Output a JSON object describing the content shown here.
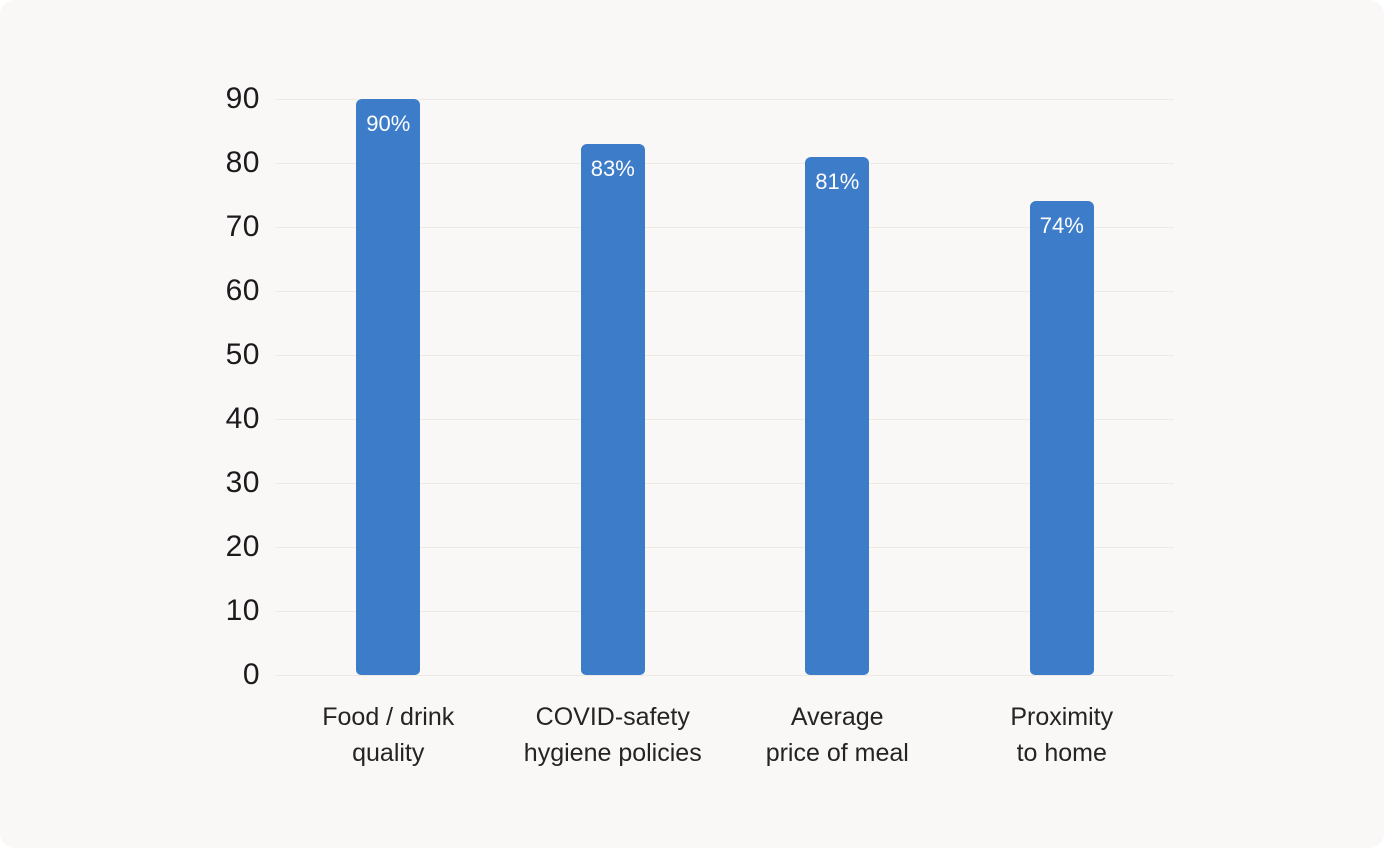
{
  "page": {
    "background": "#ffffff",
    "card_background": "#faf8f6"
  },
  "chart_data": {
    "type": "bar",
    "title": "",
    "xlabel": "",
    "ylabel": "",
    "categories": [
      "Food / drink\nquality",
      "COVID-safety\nhygiene policies",
      "Average\nprice of meal",
      "Proximity\nto home"
    ],
    "values": [
      90,
      83,
      81,
      74
    ],
    "value_labels": [
      "90%",
      "83%",
      "81%",
      "74%"
    ],
    "yticks": [
      0,
      10,
      20,
      30,
      40,
      50,
      60,
      70,
      80,
      90
    ],
    "ylim": [
      0,
      90
    ],
    "grid": true,
    "legend_position": "none",
    "bar_color": "#3d7cc9",
    "value_label_color": "#fdfdfd",
    "gridline_color": "#edeae6",
    "axis_label_color": "#1b1b1d"
  }
}
